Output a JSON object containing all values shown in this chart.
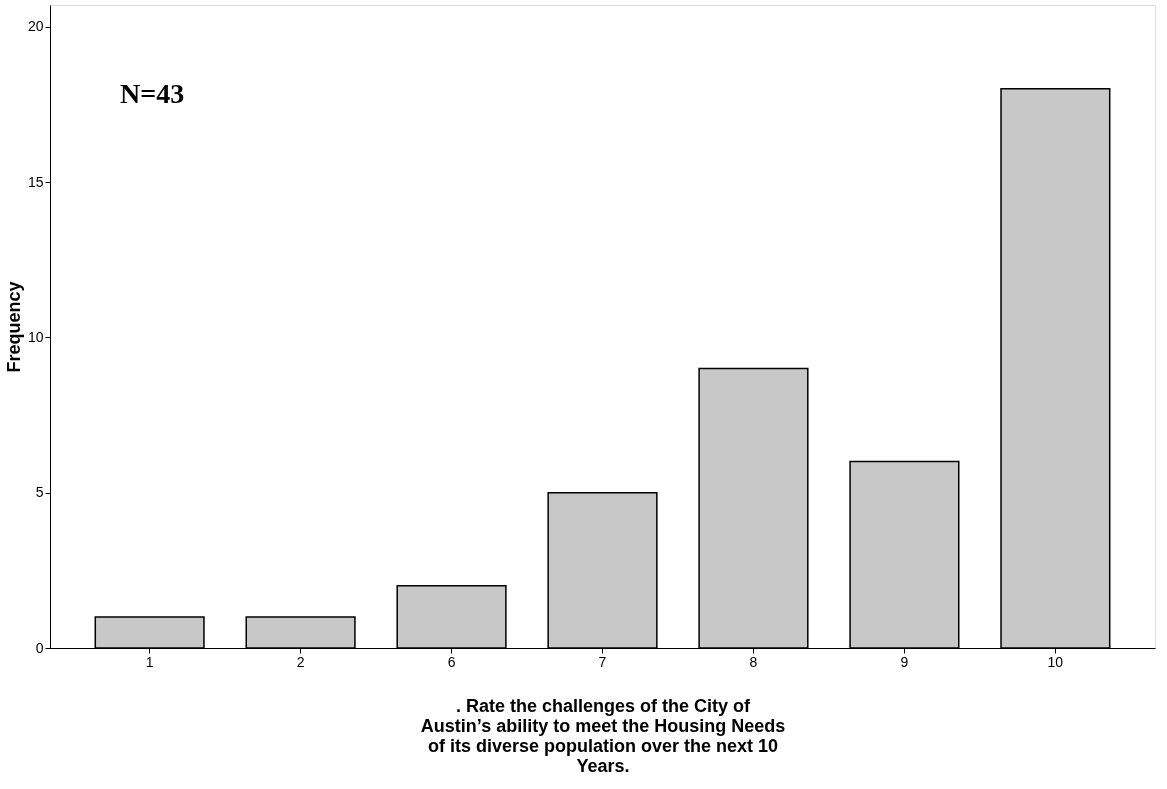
{
  "chart_data": {
    "type": "bar",
    "categories": [
      "1",
      "2",
      "6",
      "7",
      "8",
      "9",
      "10"
    ],
    "values": [
      1,
      1,
      2,
      5,
      9,
      6,
      18
    ],
    "color": "#c8c8c8",
    "xlabel": ". Rate the challenges of the City of Austin’s ability to meet the Housing Needs of its diverse population over the next 10 Years.",
    "ylabel": "Frequency",
    "ylim": [
      0,
      20.7
    ],
    "yticks": [
      0,
      5,
      10,
      15,
      20
    ],
    "grid": false,
    "annotations": [
      "N=43"
    ]
  }
}
